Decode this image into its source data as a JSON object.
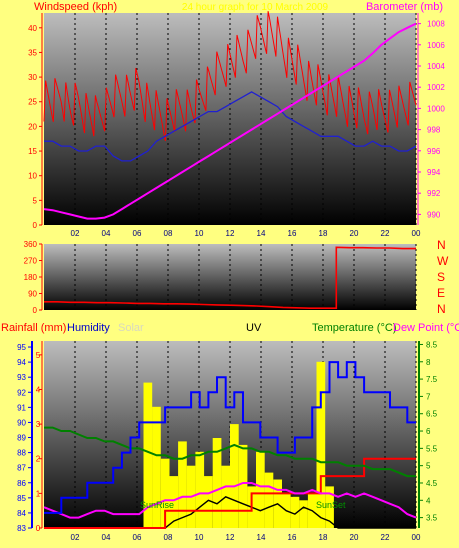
{
  "header": {
    "wind_label": "Windspeed (kph)",
    "title": "24 hour graph for 10 March 2009",
    "baro_label": "Barometer (mb)"
  },
  "panel3_labels": {
    "rainfall": "Rainfall (mm)",
    "humidity": "Humidity",
    "solar": "Solar",
    "uv": "UV",
    "temperature": "Temperature (°C)",
    "dewpoint": "Dew Point (°C)"
  },
  "compass": [
    "N",
    "W",
    "S",
    "E",
    "N"
  ],
  "annotations": {
    "sunrise": "SunRise",
    "sunset": "SunSet"
  },
  "colors": {
    "background": "#ffff80",
    "wind_gust": "#ff0000",
    "wind_avg": "#2020d0",
    "barometer": "#ff00ff",
    "direction": "#ff0000",
    "humidity": "#0000ff",
    "temperature": "#008000",
    "dewpoint": "#ff00ff",
    "solar": "#ffff00",
    "uv": "#000000",
    "rainfall": "#ff0000"
  },
  "chart_data": [
    {
      "type": "line",
      "x_ticks": [
        "02",
        "04",
        "06",
        "08",
        "10",
        "12",
        "14",
        "16",
        "18",
        "20",
        "22",
        "00"
      ],
      "y_left_ticks": [
        0,
        5,
        10,
        15,
        20,
        25,
        30,
        35,
        40
      ],
      "y_left_range": [
        0,
        43
      ],
      "y_right_ticks": [
        990,
        992,
        994,
        996,
        998,
        1000,
        1002,
        1004,
        1006,
        1008
      ],
      "y_right_range": [
        989,
        1009
      ],
      "series": [
        {
          "id": "gust",
          "axis": "left",
          "values": [
            26,
            25,
            27,
            24,
            25,
            23,
            22,
            24,
            26,
            27,
            27,
            28,
            25,
            23,
            22,
            23,
            24,
            24,
            26,
            29,
            31,
            33,
            34,
            35,
            37,
            39,
            40,
            38,
            35,
            33,
            31,
            29,
            28,
            27,
            26,
            25,
            24,
            23,
            24,
            23,
            24,
            24,
            25,
            27
          ]
        },
        {
          "id": "avg",
          "axis": "left",
          "values": [
            17,
            17,
            16,
            16,
            15,
            15,
            16,
            16,
            14,
            13,
            13,
            14,
            15,
            17,
            18,
            19,
            20,
            21,
            22,
            23,
            23,
            24,
            25,
            26,
            27,
            26,
            25,
            24,
            22,
            21,
            20,
            19,
            18,
            18,
            18,
            17,
            16,
            16,
            17,
            16,
            16,
            15,
            15,
            16
          ]
        },
        {
          "id": "baro",
          "axis": "right",
          "values": [
            990.5,
            990.4,
            990.2,
            990.0,
            989.8,
            989.6,
            989.6,
            989.7,
            990.0,
            990.5,
            991.0,
            991.5,
            992.0,
            992.5,
            993.0,
            993.5,
            994.0,
            994.5,
            995.0,
            995.5,
            996.0,
            996.5,
            997.0,
            997.5,
            998.0,
            998.5,
            999.0,
            999.5,
            1000.0,
            1000.5,
            1001.0,
            1001.5,
            1002.0,
            1002.5,
            1003.0,
            1003.5,
            1004.0,
            1004.5,
            1005.2,
            1006.0,
            1006.6,
            1007.2,
            1007.6,
            1008.0
          ]
        }
      ]
    },
    {
      "type": "line",
      "x_ticks": [
        "02",
        "04",
        "06",
        "08",
        "10",
        "12",
        "14",
        "16",
        "18",
        "20",
        "22",
        "00"
      ],
      "y_ticks": [
        0,
        90,
        180,
        270,
        360
      ],
      "y_range": [
        0,
        360
      ],
      "series": [
        {
          "id": "direction",
          "values": [
            45,
            45,
            42,
            42,
            40,
            40,
            38,
            36,
            36,
            34,
            34,
            32,
            30,
            28,
            26,
            24,
            22,
            18,
            14,
            12,
            10,
            10,
            342,
            340,
            340,
            338,
            338,
            335,
            335
          ]
        }
      ]
    },
    {
      "type": "line",
      "x_ticks": [
        "02",
        "04",
        "06",
        "08",
        "10",
        "12",
        "14",
        "16",
        "18",
        "20",
        "22",
        "00"
      ],
      "humidity_ticks": [
        83,
        84,
        85,
        86,
        87,
        88,
        89,
        90,
        91,
        92,
        93,
        94,
        95
      ],
      "humidity_range": [
        83,
        95.4
      ],
      "temp_ticks": [
        3.5,
        4,
        4.5,
        5,
        5.5,
        6,
        6.5,
        7,
        7.5,
        8,
        8.5
      ],
      "temp_range": [
        3.2,
        8.6
      ],
      "rain_ticks": [
        0,
        1,
        2,
        3,
        4,
        5
      ],
      "rain_range": [
        0,
        5.4
      ],
      "series": [
        {
          "id": "humidity",
          "axis": "humidity",
          "values": [
            84,
            84,
            85,
            85,
            85,
            86,
            86,
            86,
            87,
            88,
            89,
            90,
            90,
            90,
            91,
            91,
            91,
            92,
            91,
            92,
            93,
            91,
            92,
            90,
            90,
            89,
            89,
            88,
            88,
            89,
            89,
            91,
            92,
            94,
            93,
            94,
            93,
            92,
            92,
            92,
            91,
            91,
            90,
            90
          ]
        },
        {
          "id": "temperature",
          "axis": "temp",
          "values": [
            6.1,
            6.1,
            6.0,
            6.0,
            5.9,
            5.8,
            5.8,
            5.7,
            5.7,
            5.6,
            5.5,
            5.5,
            5.4,
            5.3,
            5.3,
            5.2,
            5.2,
            5.3,
            5.3,
            5.4,
            5.4,
            5.5,
            5.6,
            5.5,
            5.5,
            5.4,
            5.4,
            5.3,
            5.3,
            5.2,
            5.2,
            5.2,
            5.1,
            5.1,
            5.1,
            5.0,
            5.0,
            5.0,
            4.9,
            4.9,
            4.9,
            4.8,
            4.7,
            4.7
          ]
        },
        {
          "id": "dewpoint",
          "axis": "temp",
          "values": [
            3.8,
            3.7,
            3.6,
            3.5,
            3.5,
            3.6,
            3.7,
            3.7,
            3.6,
            3.6,
            3.6,
            3.6,
            3.8,
            3.9,
            4.0,
            4.0,
            4.1,
            4.1,
            4.2,
            4.2,
            4.3,
            4.4,
            4.4,
            4.5,
            4.5,
            4.4,
            4.4,
            4.3,
            4.3,
            4.2,
            4.2,
            4.3,
            4.2,
            4.2,
            4.1,
            4.2,
            4.1,
            4.2,
            4.1,
            4.0,
            3.9,
            3.8,
            3.6,
            3.5
          ]
        },
        {
          "id": "rainfall",
          "axis": "rain",
          "values": [
            0,
            0,
            0,
            0,
            0,
            0,
            0,
            0,
            0,
            0,
            0,
            0,
            0,
            0,
            0.5,
            0.5,
            0.5,
            0.5,
            0.5,
            0.5,
            0.5,
            0.5,
            0.5,
            0.5,
            1.0,
            1.0,
            1.0,
            1.0,
            1.0,
            1.0,
            1.0,
            1.0,
            1.5,
            1.5,
            1.5,
            1.5,
            1.5,
            2.0,
            2.0,
            2.0,
            2.0,
            2.0,
            2.0,
            2.0
          ]
        },
        {
          "id": "solar",
          "axis": "rain",
          "values": [
            0,
            0,
            0,
            0,
            0,
            0,
            0,
            0,
            0,
            0,
            0,
            0,
            4.2,
            3.5,
            2.0,
            1.5,
            2.5,
            1.8,
            2.2,
            1.5,
            2.6,
            1.8,
            3.0,
            2.4,
            1.2,
            2.2,
            1.6,
            1.4,
            1.0,
            0.9,
            0.8,
            1.0,
            4.8,
            1.2,
            0,
            0,
            0,
            0,
            0,
            0,
            0,
            0,
            0,
            0
          ]
        },
        {
          "id": "uv",
          "axis": "rain",
          "values": [
            0,
            0,
            0,
            0,
            0,
            0,
            0,
            0,
            0,
            0,
            0,
            0,
            0,
            0,
            0,
            0.2,
            0.3,
            0.4,
            0.6,
            0.8,
            0.7,
            0.9,
            0.8,
            0.7,
            0.6,
            0.5,
            0.6,
            0.7,
            0.5,
            0.4,
            0.6,
            0.5,
            0.3,
            0.2,
            0,
            0,
            0,
            0,
            0,
            0,
            0,
            0,
            0,
            0
          ]
        }
      ]
    }
  ]
}
